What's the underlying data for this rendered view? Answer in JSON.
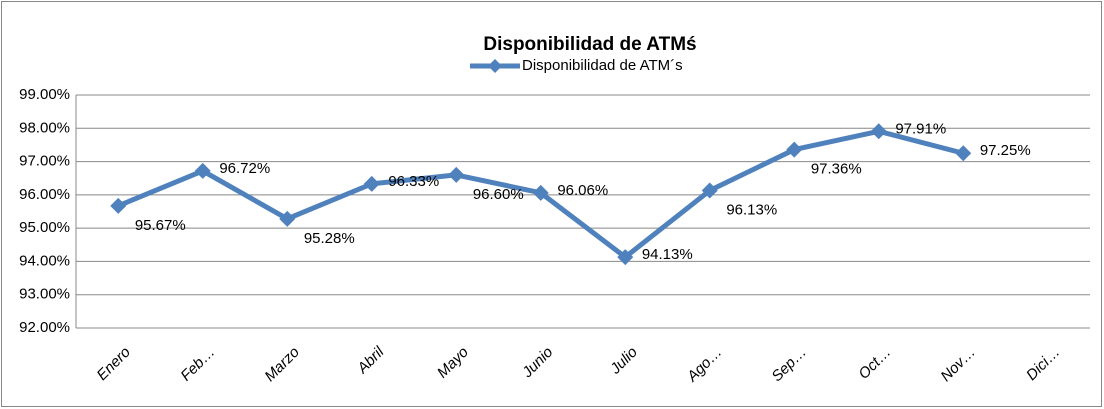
{
  "chart_data": {
    "type": "line",
    "title": "Disponibilidad de ATMś",
    "categories": [
      "Enero",
      "Feb…",
      "Marzo",
      "Abril",
      "Mayo",
      "Junio",
      "Julio",
      "Ago…",
      "Sep…",
      "Oct…",
      "Nov…",
      "Dici…"
    ],
    "series": [
      {
        "name": "Disponibilidad de ATM´s",
        "color": "#4f81bd",
        "values": [
          95.67,
          96.72,
          95.28,
          96.33,
          96.6,
          96.06,
          94.13,
          96.13,
          97.36,
          97.91,
          97.25,
          null
        ],
        "value_labels": [
          "95.67%",
          "96.72%",
          "95.28%",
          "96.33%",
          "96.60%",
          "96.06%",
          "94.13%",
          "96.13%",
          "97.36%",
          "97.91%",
          "97.25%",
          null
        ]
      }
    ],
    "ylim": [
      92,
      99
    ],
    "yticks": [
      {
        "value": 92,
        "label": "92.00%"
      },
      {
        "value": 93,
        "label": "93.00%"
      },
      {
        "value": 94,
        "label": "94.00%"
      },
      {
        "value": 95,
        "label": "95.00%"
      },
      {
        "value": 96,
        "label": "96.00%"
      },
      {
        "value": 97,
        "label": "97.00%"
      },
      {
        "value": 98,
        "label": "98.00%"
      },
      {
        "value": 99,
        "label": "99.00%"
      }
    ],
    "grid": true,
    "legend": "top"
  }
}
